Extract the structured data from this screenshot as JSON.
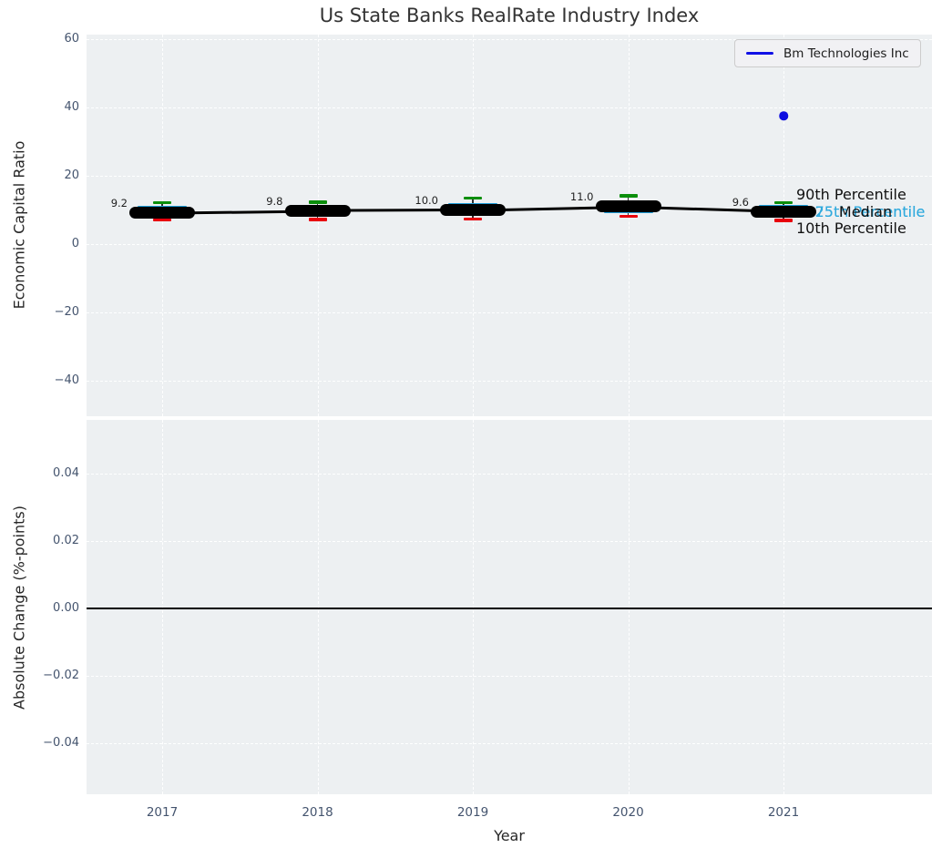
{
  "title": "Us State Banks RealRate Industry Index",
  "legend": {
    "label": "Bm Technologies Inc",
    "line_color": "#1010e6"
  },
  "axes": {
    "top": {
      "ylabel": "Economic Capital Ratio",
      "ytick_labels": [
        "60",
        "40",
        "20",
        "0",
        "−20",
        "−40"
      ]
    },
    "bottom": {
      "ylabel": "Absolute Change (%-points)",
      "ytick_labels": [
        "0.04",
        "0.02",
        "0.00",
        "−0.02",
        "−0.04"
      ],
      "xlabel": "Year",
      "xtick_labels": [
        "2017",
        "2018",
        "2019",
        "2020",
        "2021"
      ]
    }
  },
  "annotations": {
    "p90": "90th Percentile",
    "p75": "75th Percentile",
    "median": "Median",
    "p25": "25th Percentile",
    "p10": "10th Percentile"
  },
  "colors": {
    "plot_bg": "#edf0f2",
    "box_blue": "#1e9cd7",
    "percentile_text_blue": "#2ea9dd",
    "p90_green": "#0b8e0b",
    "p10_red": "#e8000c",
    "median_black": "#000000",
    "company_blue": "#0c0ce0",
    "tick_label": "#44546e"
  },
  "chart_data": [
    {
      "type": "boxplot-line",
      "title": "Us State Banks RealRate Industry Index",
      "xlabel": "Year",
      "ylabel": "Economic Capital Ratio",
      "ylim": [
        -50,
        61
      ],
      "yticks": [
        60,
        40,
        20,
        0,
        -20,
        -40
      ],
      "categories": [
        2017,
        2018,
        2019,
        2020,
        2021
      ],
      "grid": "white dashed",
      "legend_position": "upper right",
      "industry_percentiles": [
        {
          "year": 2017,
          "p10": 7.1,
          "p25": 7.9,
          "median": 9.2,
          "p75": 11.2,
          "p90": 12.1,
          "label": "9.2"
        },
        {
          "year": 2018,
          "p10": 7.2,
          "p25": 7.9,
          "median": 9.8,
          "p75": 11.4,
          "p90": 12.3,
          "label": "9.8"
        },
        {
          "year": 2019,
          "p10": 7.3,
          "p25": 8.2,
          "median": 10.0,
          "p75": 12.1,
          "p90": 13.5,
          "label": "10.0"
        },
        {
          "year": 2020,
          "p10": 8.2,
          "p25": 9.1,
          "median": 11.0,
          "p75": 12.1,
          "p90": 14.1,
          "label": "11.0"
        },
        {
          "year": 2021,
          "p10": 6.9,
          "p25": 7.8,
          "median": 9.6,
          "p75": 11.4,
          "p90": 12.2,
          "label": "9.6"
        }
      ],
      "series": [
        {
          "name": "Bm Technologies Inc",
          "color": "#0c0ce0",
          "points": [
            {
              "x": 2021,
              "y": 37.5
            }
          ]
        }
      ]
    },
    {
      "type": "line",
      "xlabel": "Year",
      "ylabel": "Absolute Change (%-points)",
      "ylim": [
        -0.055,
        0.056
      ],
      "yticks": [
        0.04,
        0.02,
        0.0,
        -0.02,
        -0.04
      ],
      "categories": [
        2017,
        2018,
        2019,
        2020,
        2021
      ],
      "grid": "white dashed",
      "zero_line": 0.0,
      "series": []
    }
  ]
}
